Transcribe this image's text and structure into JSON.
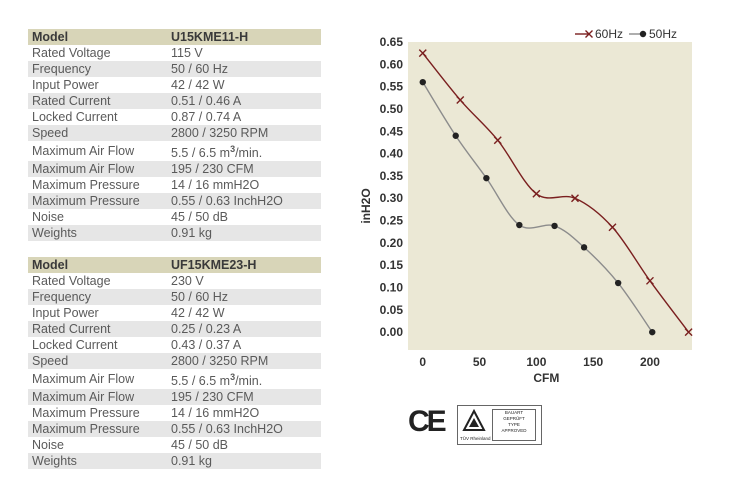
{
  "tables": [
    {
      "rows": [
        [
          "Model",
          "U15KME11-H"
        ],
        [
          "Rated Voltage",
          "115 V"
        ],
        [
          "Frequency",
          "50 / 60 Hz"
        ],
        [
          "Input Power",
          "42 / 42 W"
        ],
        [
          "Rated Current",
          "0.51 / 0.46 A"
        ],
        [
          "Locked Current",
          "0.87 / 0.74 A"
        ],
        [
          "Speed",
          "2800 / 3250 RPM"
        ],
        [
          "Maximum Air Flow",
          "5.5 / 6.5 m",
          "3",
          "/min."
        ],
        [
          "Maximum Air Flow",
          "195 / 230 CFM"
        ],
        [
          "Maximum Pressure",
          "14 / 16 mmH2O"
        ],
        [
          "Maximum Pressure",
          "0.55 / 0.63 InchH2O"
        ],
        [
          "Noise",
          "45 / 50 dB"
        ],
        [
          "Weights",
          "0.91 kg"
        ]
      ]
    },
    {
      "rows": [
        [
          "Model",
          "UF15KME23-H"
        ],
        [
          "Rated Voltage",
          "230 V"
        ],
        [
          "Frequency",
          "50 / 60 Hz"
        ],
        [
          "Input Power",
          "42 / 42 W"
        ],
        [
          "Rated Current",
          "0.25 / 0.23 A"
        ],
        [
          "Locked Current",
          "0.43 / 0.37 A"
        ],
        [
          "Speed",
          "2800 / 3250 RPM"
        ],
        [
          "Maximum Air Flow",
          "5.5 / 6.5 m",
          "3",
          "/min."
        ],
        [
          "Maximum Air Flow",
          "195 / 230 CFM"
        ],
        [
          "Maximum Pressure",
          "14 / 16 mmH2O"
        ],
        [
          "Maximum Pressure",
          "0.55 / 0.63 InchH2O"
        ],
        [
          "Noise",
          "45 / 50 dB"
        ],
        [
          "Weights",
          "0.91 kg"
        ]
      ]
    }
  ],
  "chart_data": {
    "type": "line",
    "xlabel": "CFM",
    "ylabel": "inH2O",
    "xlim": [
      -13,
      237
    ],
    "ylim": [
      -0.04,
      0.65
    ],
    "xticks": [
      0,
      50,
      100,
      150,
      200
    ],
    "yticks": [
      0.0,
      0.05,
      0.1,
      0.15,
      0.2,
      0.25,
      0.3,
      0.35,
      0.4,
      0.45,
      0.5,
      0.55,
      0.6,
      0.65
    ],
    "grid": false,
    "legend": "top-right",
    "series": [
      {
        "name": "60Hz",
        "marker": "x",
        "color": "#7a1f1f",
        "x": [
          0,
          33,
          66,
          100,
          134,
          167,
          200,
          234
        ],
        "y": [
          0.625,
          0.52,
          0.43,
          0.31,
          0.3,
          0.235,
          0.115,
          0.0
        ]
      },
      {
        "name": "50Hz",
        "marker": "dot",
        "color": "#8c8c8c",
        "x": [
          0,
          29,
          56,
          85,
          116,
          142,
          172,
          202
        ],
        "y": [
          0.56,
          0.44,
          0.345,
          0.24,
          0.238,
          0.19,
          0.11,
          0.0
        ]
      }
    ]
  },
  "certs": {
    "ce": "CE",
    "tuv_label": "TÜV Rheinland",
    "tuv_box": [
      "BAUART",
      "GEPRÜFT",
      "TYPE",
      "APPROVED"
    ]
  }
}
